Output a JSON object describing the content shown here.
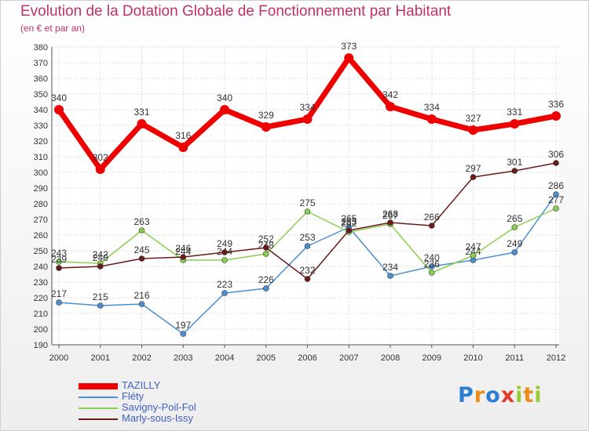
{
  "chart_data": {
    "type": "line",
    "title": "Evolution de la Dotation Globale de Fonctionnement par Habitant",
    "subtitle": "(en € et par an)",
    "x": [
      "2000",
      "2001",
      "2002",
      "2003",
      "2004",
      "2005",
      "2006",
      "2007",
      "2008",
      "2009",
      "2010",
      "2011",
      "2012"
    ],
    "ylim": [
      190,
      380
    ],
    "yticks": [
      190,
      200,
      210,
      220,
      230,
      240,
      250,
      260,
      270,
      280,
      290,
      300,
      310,
      320,
      330,
      340,
      350,
      360,
      370,
      380
    ],
    "grid": true,
    "legend_position": "bottom-left",
    "series": [
      {
        "name": "TAZILLY",
        "color": "#ee0000",
        "values": [
          340,
          302,
          331,
          316,
          340,
          329,
          334,
          373,
          342,
          334,
          327,
          331,
          336
        ]
      },
      {
        "name": "Fléty",
        "color": "#4b8fd0",
        "values": [
          217,
          215,
          216,
          197,
          223,
          226,
          253,
          265,
          234,
          240,
          244,
          249,
          286
        ]
      },
      {
        "name": "Savigny-Poil-Fol",
        "color": "#88d050",
        "values": [
          243,
          242,
          263,
          244,
          244,
          248,
          275,
          262,
          267,
          236,
          247,
          265,
          277
        ]
      },
      {
        "name": "Marly-sous-Issy",
        "color": "#6b1a1a",
        "values": [
          239,
          240,
          245,
          246,
          249,
          252,
          232,
          263,
          268,
          266,
          297,
          301,
          306
        ]
      }
    ]
  },
  "logo": {
    "letters": [
      "P",
      "r",
      "o",
      "x",
      "i",
      "t",
      "i"
    ],
    "colors": [
      "#2b7fd0",
      "#f08a1a",
      "#2b7fd0",
      "#e23a2a",
      "#9acd32",
      "#f08a1a",
      "#9acd32"
    ]
  }
}
